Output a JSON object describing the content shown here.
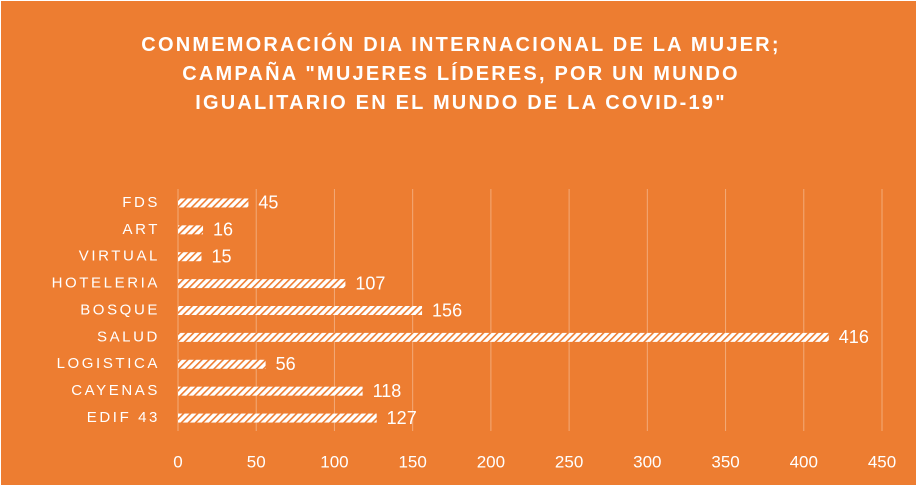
{
  "chart_data": {
    "type": "bar",
    "orientation": "horizontal",
    "title": "CONMEMORACIÓN DIA INTERNACIONAL DE LA MUJER; CAMPAÑA \"MUJERES LÍDERES, POR UN MUNDO IGUALITARIO EN EL MUNDO DE LA COVID-19\"",
    "categories": [
      "FDS",
      "ART",
      "VIRTUAL",
      "HOTELERIA",
      "BOSQUE",
      "SALUD",
      "LOGISTICA",
      "CAYENAS",
      "EDIF 43"
    ],
    "values": [
      45,
      16,
      15,
      107,
      156,
      416,
      56,
      118,
      127
    ],
    "color": "#ffffff",
    "background": "#ed7d31",
    "xlim": [
      0,
      450
    ],
    "xticks": [
      0,
      50,
      100,
      150,
      200,
      250,
      300,
      350,
      400,
      450
    ],
    "grid": true
  }
}
